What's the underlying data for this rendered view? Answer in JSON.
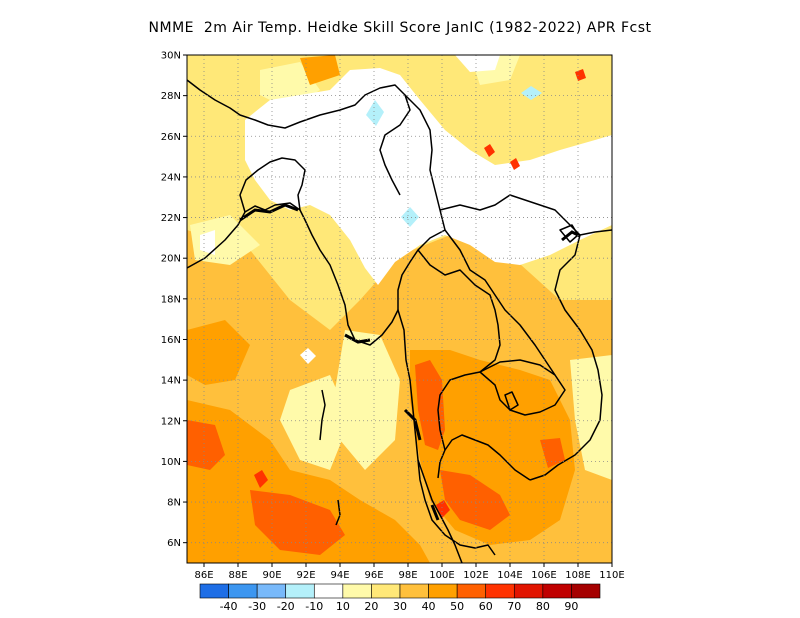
{
  "title": "NMME  2m Air Temp. Heidke Skill Score JanIC (1982-2022) APR Fcst",
  "lat_labels": [
    "30N",
    "28N",
    "26N",
    "24N",
    "22N",
    "20N",
    "18N",
    "16N",
    "14N",
    "12N",
    "10N",
    "8N",
    "6N"
  ],
  "lat_values": [
    30,
    28,
    26,
    24,
    22,
    20,
    18,
    16,
    14,
    12,
    10,
    8,
    6
  ],
  "lon_labels": [
    "86E",
    "88E",
    "90E",
    "92E",
    "94E",
    "96E",
    "98E",
    "100E",
    "102E",
    "104E",
    "106E",
    "108E",
    "110E"
  ],
  "lon_values": [
    86,
    88,
    90,
    92,
    94,
    96,
    98,
    100,
    102,
    104,
    106,
    108,
    110
  ],
  "map_extent": {
    "lon_min": 85,
    "lon_max": 110,
    "lat_min": 5,
    "lat_max": 30
  },
  "grid": "dotted",
  "colorbar": {
    "colors": [
      "#1e6ee6",
      "#3c96f0",
      "#78b9fa",
      "#b4f0fa",
      "#ffffff",
      "#fffaaa",
      "#ffe878",
      "#ffc03c",
      "#ffa000",
      "#ff6000",
      "#ff3200",
      "#e11400",
      "#c00000",
      "#a50000"
    ],
    "labels": [
      "-40",
      "-30",
      "-20",
      "-10",
      "10",
      "20",
      "30",
      "40",
      "50",
      "60",
      "70",
      "80",
      "90"
    ]
  },
  "field_colors": {
    "white": "#ffffff",
    "light_blue": "#b4f0fa",
    "c10_20": "#fffaaa",
    "c20_30": "#ffe878",
    "c30_40": "#ffc03c",
    "c40_50": "#ffa000",
    "c50_60": "#ff6000",
    "c60_70": "#ff3200",
    "c70_80": "#e11400"
  }
}
